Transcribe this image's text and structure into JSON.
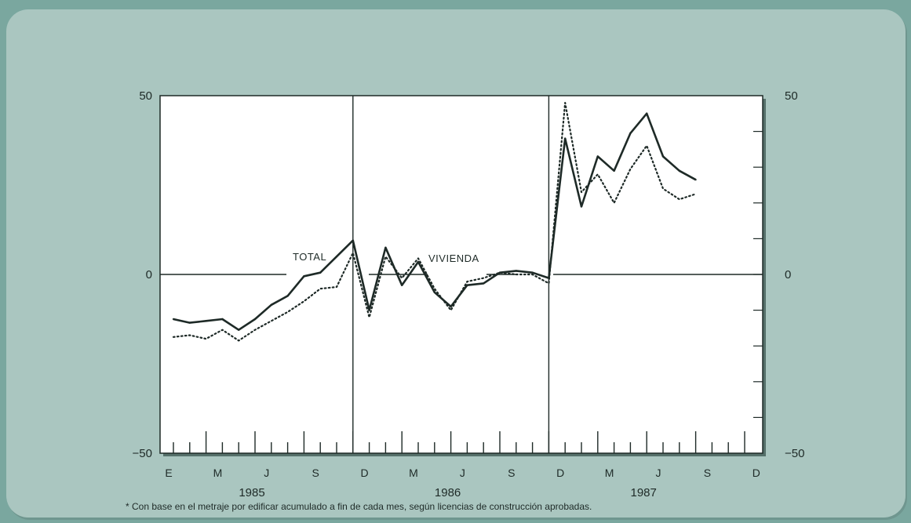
{
  "chart_data": {
    "type": "line",
    "title": "",
    "xlabel": "",
    "ylabel": "",
    "ylim": [
      -50,
      50
    ],
    "y_ticks": [
      "50",
      "0",
      "−50"
    ],
    "month_labels": [
      "E",
      "M",
      "J",
      "S",
      "D",
      "M",
      "J",
      "S",
      "D",
      "M",
      "J",
      "S",
      "D"
    ],
    "year_labels": [
      "1985",
      "1986",
      "1987"
    ],
    "grid": false,
    "legend": "inline labels",
    "x": [
      "1985-01",
      "1985-02",
      "1985-03",
      "1985-04",
      "1985-05",
      "1985-06",
      "1985-07",
      "1985-08",
      "1985-09",
      "1985-10",
      "1985-11",
      "1985-12",
      "1986-01",
      "1986-02",
      "1986-03",
      "1986-04",
      "1986-05",
      "1986-06",
      "1986-07",
      "1986-08",
      "1986-09",
      "1986-10",
      "1986-11",
      "1986-12",
      "1987-01",
      "1987-02",
      "1987-03",
      "1987-04",
      "1987-05",
      "1987-06",
      "1987-07",
      "1987-08",
      "1987-09"
    ],
    "series": [
      {
        "name": "TOTAL",
        "style": "solid",
        "values": [
          -12.5,
          -13.5,
          -13,
          -12.5,
          -15.5,
          -12.5,
          -8.5,
          -6,
          -0.5,
          0.5,
          5,
          9.5,
          -10,
          7.5,
          -3,
          3.5,
          -5,
          -9,
          -3,
          -2.5,
          0.5,
          1,
          0.5,
          -1,
          38,
          19,
          33,
          29,
          39.5,
          45,
          33,
          29,
          26.5
        ]
      },
      {
        "name": "VIVIENDA",
        "style": "dotted",
        "values": [
          -17.5,
          -17,
          -18,
          -15.5,
          -18.5,
          -15.5,
          -13,
          -10.5,
          -7.5,
          -4,
          -3.5,
          6,
          -12,
          5,
          -1,
          4.5,
          -4,
          -10,
          -2,
          -1,
          0.5,
          0,
          0,
          -2.5,
          48,
          23,
          28,
          20,
          29.5,
          36,
          24,
          21,
          22.5
        ]
      }
    ],
    "colors": {
      "line": "#1e2a27",
      "plot_bg": "#ffffff",
      "frame": "#55706a",
      "panel": "#aac6c0"
    }
  },
  "footnote": "*  Con base en el metraje por edificar acumulado a fin de cada mes, según licencias de construcción aprobadas."
}
